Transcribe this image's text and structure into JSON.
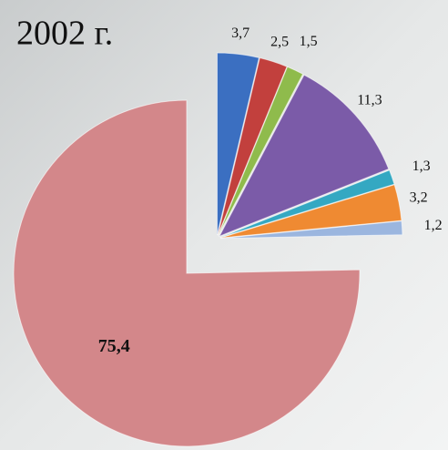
{
  "chart_data": {
    "type": "pie",
    "title": "2002 г.",
    "values": [
      3.7,
      2.5,
      1.5,
      11.3,
      1.3,
      3.2,
      1.2,
      75.4
    ],
    "value_labels": [
      "3,7",
      "2,5",
      "1,5",
      "11,3",
      "1,3",
      "3,2",
      "1,2",
      "75,4"
    ],
    "colors": [
      "#3b6fc1",
      "#c2403d",
      "#8fbb4c",
      "#7b5ba8",
      "#34a8c2",
      "#ef8a32",
      "#9bb6df",
      "#d3878a"
    ]
  }
}
